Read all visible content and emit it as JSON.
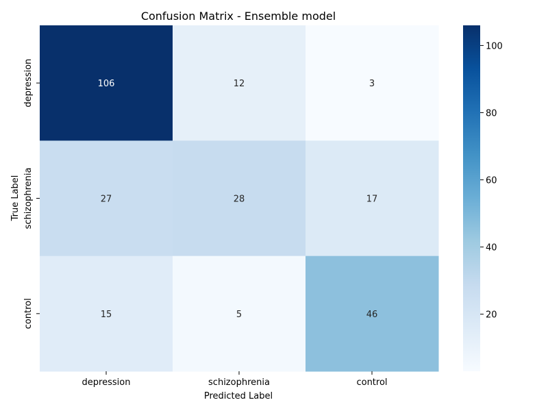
{
  "chart_data": {
    "type": "heatmap",
    "title": "Confusion Matrix - Ensemble model",
    "xlabel": "Predicted Label",
    "ylabel": "True Label",
    "x_categories": [
      "depression",
      "schizophrenia",
      "control"
    ],
    "y_categories": [
      "depression",
      "schizophrenia",
      "control"
    ],
    "values": [
      [
        106,
        12,
        3
      ],
      [
        27,
        28,
        17
      ],
      [
        15,
        5,
        46
      ]
    ],
    "colormap": "Blues",
    "color_range": [
      3,
      106
    ],
    "colorbar_ticks": [
      20,
      40,
      60,
      80,
      100
    ],
    "annotated": true,
    "grid": false,
    "colorbar_placement": "right"
  }
}
